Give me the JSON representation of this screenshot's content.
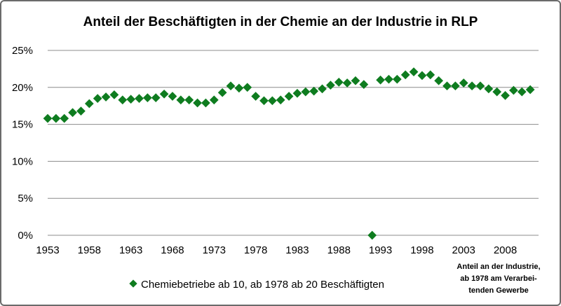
{
  "chart_data": {
    "type": "scatter",
    "title": "Anteil der Beschäftigten in der Chemie an der Industrie in RLP",
    "xlabel": "",
    "ylabel": "",
    "x_ticks": [
      "1953",
      "1958",
      "1963",
      "1968",
      "1973",
      "1978",
      "1983",
      "1988",
      "1993",
      "1998",
      "2003",
      "2008"
    ],
    "y_ticks": [
      "0%",
      "5%",
      "10%",
      "15%",
      "20%",
      "25%"
    ],
    "xlim": [
      1953,
      2012
    ],
    "ylim": [
      0,
      25
    ],
    "grid": "horizontal",
    "legend_position": "bottom",
    "marker": "diamond",
    "color": "#0e7c1f",
    "series": [
      {
        "name": "Chemiebetriebe ab 10, ab 1978 ab 20 Beschäftigten",
        "x": [
          1953,
          1954,
          1955,
          1956,
          1957,
          1958,
          1959,
          1960,
          1961,
          1962,
          1963,
          1964,
          1965,
          1966,
          1967,
          1968,
          1969,
          1970,
          1971,
          1972,
          1973,
          1974,
          1975,
          1976,
          1977,
          1978,
          1979,
          1980,
          1981,
          1982,
          1983,
          1984,
          1985,
          1986,
          1987,
          1988,
          1989,
          1990,
          1991,
          1992,
          1993,
          1994,
          1995,
          1996,
          1997,
          1998,
          1999,
          2000,
          2001,
          2002,
          2003,
          2004,
          2005,
          2006,
          2007,
          2008,
          2009,
          2010,
          2011
        ],
        "y": [
          15.8,
          15.8,
          15.8,
          16.6,
          16.8,
          17.8,
          18.5,
          18.7,
          19.0,
          18.3,
          18.4,
          18.5,
          18.6,
          18.6,
          19.1,
          18.8,
          18.3,
          18.3,
          17.9,
          17.9,
          18.3,
          19.3,
          20.2,
          19.9,
          20.0,
          18.8,
          18.2,
          18.2,
          18.3,
          18.8,
          19.2,
          19.4,
          19.5,
          19.8,
          20.3,
          20.7,
          20.6,
          20.9,
          20.4,
          0.0,
          21.0,
          21.1,
          21.1,
          21.7,
          22.1,
          21.6,
          21.7,
          20.9,
          20.2,
          20.2,
          20.6,
          20.2,
          20.2,
          19.8,
          19.4,
          18.9,
          19.6,
          19.4,
          19.7
        ]
      }
    ],
    "annotation": [
      "Anteil an der Industrie,",
      "ab 1978 am Verarbei-",
      "tenden Gewerbe"
    ]
  }
}
